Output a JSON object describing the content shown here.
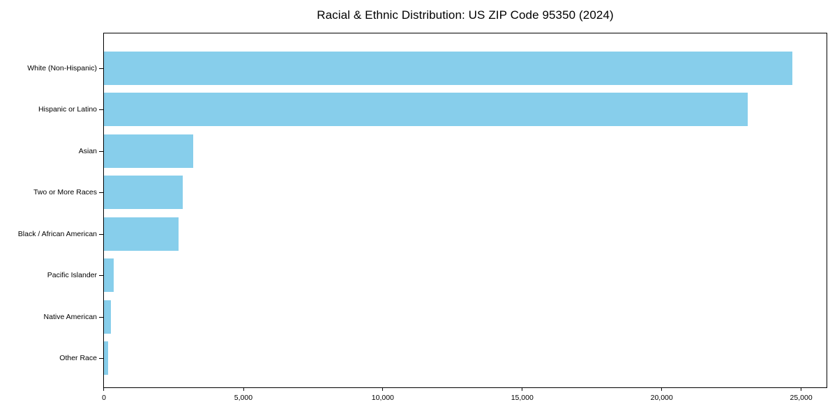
{
  "chart_data": {
    "type": "bar",
    "orientation": "horizontal",
    "title": "Racial & Ethnic Distribution: US ZIP Code 95350 (2024)",
    "categories": [
      "White (Non-Hispanic)",
      "Hispanic or Latino",
      "Asian",
      "Two or More Races",
      "Black / African American",
      "Pacific Islander",
      "Native American",
      "Other Race"
    ],
    "values": [
      24675,
      23090,
      3200,
      2820,
      2670,
      350,
      250,
      150
    ],
    "xlabel": "",
    "ylabel": "",
    "xlim": [
      0,
      25910
    ],
    "x_ticks": [
      {
        "value": 0,
        "label": "0"
      },
      {
        "value": 5000,
        "label": "5,000"
      },
      {
        "value": 10000,
        "label": "10,000"
      },
      {
        "value": 15000,
        "label": "15,000"
      },
      {
        "value": 20000,
        "label": "20,000"
      },
      {
        "value": 25000,
        "label": "25,000"
      }
    ],
    "bar_color": "#87CEEB",
    "axis_color": "#000000",
    "grid": false,
    "legend": "none"
  }
}
